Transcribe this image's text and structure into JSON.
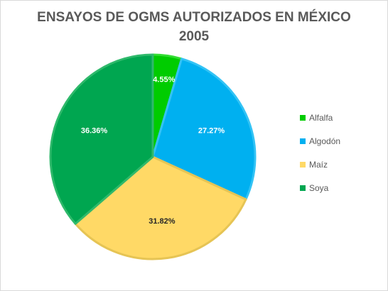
{
  "chart_data": {
    "type": "pie",
    "title_lines": [
      "ENSAYOS DE OGMS AUTORIZADOS EN MÉXICO",
      "2005"
    ],
    "slices": [
      {
        "label": "Alfalfa",
        "value": 4.55,
        "data_label": "4.55%",
        "color": "#00cc00",
        "stroke": "#33dd33",
        "label_color": "#ffffff"
      },
      {
        "label": "Algodón",
        "value": 27.27,
        "data_label": "27.27%",
        "color": "#00b0f0",
        "stroke": "#33c3f5",
        "label_color": "#ffffff"
      },
      {
        "label": "Maíz",
        "value": 31.82,
        "data_label": "31.82%",
        "color": "#ffd966",
        "stroke": "#e6c454",
        "label_color": "#262626"
      },
      {
        "label": "Soya",
        "value": 36.36,
        "data_label": "36.36%",
        "color": "#00a650",
        "stroke": "#2fb96b",
        "label_color": "#ffffff"
      }
    ],
    "legend_position": "right"
  }
}
